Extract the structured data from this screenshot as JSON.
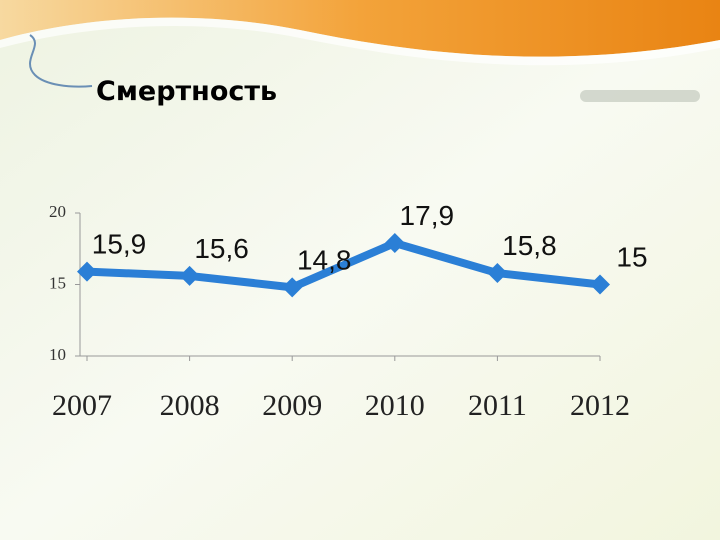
{
  "chart_data": {
    "type": "line",
    "title": "Смертность",
    "categories": [
      "2007",
      "2008",
      "2009",
      "2010",
      "2011",
      "2012"
    ],
    "values": [
      15.9,
      15.6,
      14.8,
      17.9,
      15.8,
      15
    ],
    "value_labels": [
      "15,9",
      "15,6",
      "14,8",
      "17,9",
      "15,8",
      "15"
    ],
    "color": "#2b7fd6",
    "ylim": [
      10,
      20
    ],
    "yticks": [
      10,
      15,
      20
    ],
    "grid": false
  }
}
